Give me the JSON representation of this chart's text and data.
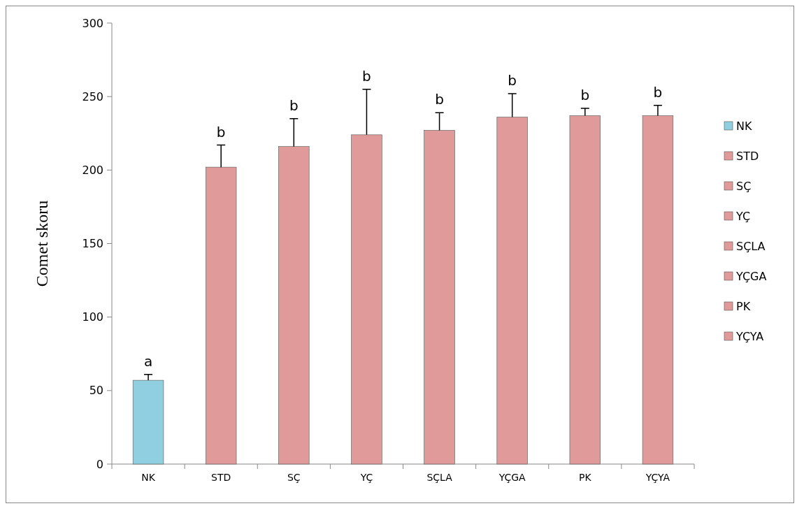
{
  "chart_data": {
    "type": "bar",
    "ylabel": "Comet  skoru",
    "categories": [
      "NK",
      "STD",
      "SÇ",
      "YÇ",
      "SÇLA",
      "YÇGA",
      "PK",
      "YÇYA"
    ],
    "series": [
      {
        "name": "NK",
        "color": "#8fcfdf",
        "values": [
          57,
          null,
          null,
          null,
          null,
          null,
          null,
          null
        ],
        "errors": [
          [
            57,
            61
          ],
          null,
          null,
          null,
          null,
          null,
          null,
          null
        ]
      },
      {
        "name": "STD",
        "color": "#e19a9a",
        "values": [
          null,
          202,
          null,
          null,
          null,
          null,
          null,
          null
        ],
        "errors": [
          null,
          [
            202,
            217
          ],
          null,
          null,
          null,
          null,
          null,
          null
        ]
      },
      {
        "name": "SÇ",
        "color": "#e19a9a",
        "values": [
          null,
          null,
          216,
          null,
          null,
          null,
          null,
          null
        ],
        "errors": [
          null,
          null,
          [
            216,
            235
          ],
          null,
          null,
          null,
          null,
          null
        ]
      },
      {
        "name": "YÇ",
        "color": "#e19a9a",
        "values": [
          null,
          null,
          null,
          224,
          null,
          null,
          null,
          null
        ],
        "errors": [
          null,
          null,
          null,
          [
            224,
            255
          ],
          null,
          null,
          null,
          null
        ]
      },
      {
        "name": "SÇLA",
        "color": "#e19a9a",
        "values": [
          null,
          null,
          null,
          null,
          227,
          null,
          null,
          null
        ],
        "errors": [
          null,
          null,
          null,
          null,
          [
            227,
            239
          ],
          null,
          null,
          null
        ]
      },
      {
        "name": "YÇGA",
        "color": "#e19a9a",
        "values": [
          null,
          null,
          null,
          null,
          null,
          236,
          null,
          null
        ],
        "errors": [
          null,
          null,
          null,
          null,
          null,
          [
            236,
            252
          ],
          null,
          null
        ]
      },
      {
        "name": "PK",
        "color": "#e19a9a",
        "values": [
          null,
          null,
          null,
          null,
          null,
          null,
          237,
          null
        ],
        "errors": [
          null,
          null,
          null,
          null,
          null,
          null,
          [
            237,
            242
          ],
          null
        ]
      },
      {
        "name": "YÇYA",
        "color": "#e19a9a",
        "values": [
          null,
          null,
          null,
          null,
          null,
          null,
          null,
          237
        ],
        "errors": [
          null,
          null,
          null,
          null,
          null,
          null,
          null,
          [
            237,
            244
          ]
        ]
      }
    ],
    "ylim": [
      0,
      300
    ],
    "yticks": [
      0,
      50,
      100,
      150,
      200,
      250,
      300
    ],
    "annotations": [
      {
        "text": "a",
        "x": "NK",
        "y": 61
      },
      {
        "text": "b",
        "x": "STD",
        "y": 217
      },
      {
        "text": "b",
        "x": "SÇ",
        "y": 235
      },
      {
        "text": "b",
        "x": "YÇ",
        "y": 255
      },
      {
        "text": "b",
        "x": "SÇLA",
        "y": 239
      },
      {
        "text": "b",
        "x": "YÇGA",
        "y": 252
      },
      {
        "text": "b",
        "x": "PK",
        "y": 242
      },
      {
        "text": "b",
        "x": "YÇYA",
        "y": 244
      }
    ],
    "legend": "right",
    "grid": false
  }
}
